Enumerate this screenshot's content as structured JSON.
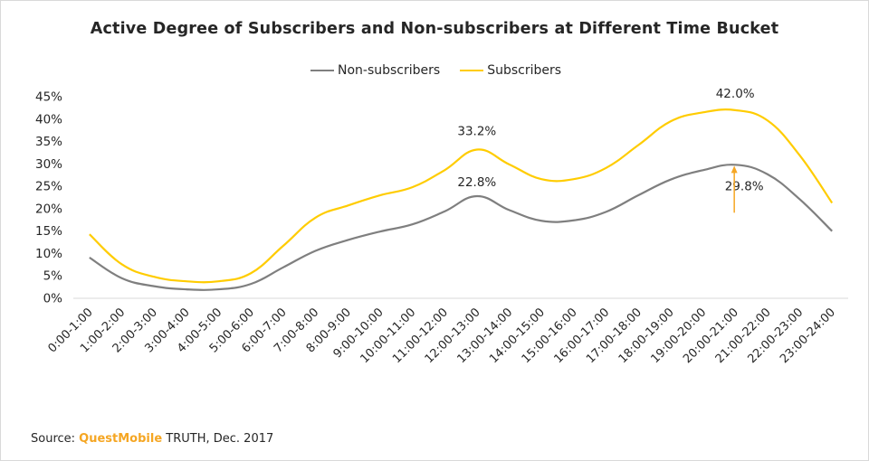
{
  "chart_data": {
    "type": "line",
    "title": "Active Degree of Subscribers and Non-subscribers at Different Time Bucket",
    "xlabel": "",
    "ylabel": "",
    "ylim": [
      0,
      45
    ],
    "yticks": [
      "0%",
      "5%",
      "10%",
      "15%",
      "20%",
      "25%",
      "30%",
      "35%",
      "40%",
      "45%"
    ],
    "ytick_values": [
      0,
      5,
      10,
      15,
      20,
      25,
      30,
      35,
      40,
      45
    ],
    "grid": false,
    "legend_position": "top-center",
    "categories": [
      "0:00-1:00",
      "1:00-2:00",
      "2:00-3:00",
      "3:00-4:00",
      "4:00-5:00",
      "5:00-6:00",
      "6:00-7:00",
      "7:00-8:00",
      "8:00-9:00",
      "9:00-10:00",
      "10:00-11:00",
      "11:00-12:00",
      "12:00-13:00",
      "13:00-14:00",
      "14:00-15:00",
      "15:00-16:00",
      "16:00-17:00",
      "17:00-18:00",
      "18:00-19:00",
      "19:00-20:00",
      "20:00-21:00",
      "21:00-22:00",
      "22:00-23:00",
      "23:00-24:00"
    ],
    "series": [
      {
        "name": "Non-subscribers",
        "color": "#7f7f7f",
        "values": [
          9.1,
          4.5,
          2.7,
          2.0,
          2.0,
          3.2,
          6.9,
          10.6,
          13.0,
          14.9,
          16.5,
          19.4,
          22.8,
          19.7,
          17.3,
          17.4,
          19.3,
          23.0,
          26.5,
          28.6,
          29.8,
          27.7,
          22.1,
          15.0
        ]
      },
      {
        "name": "Subscribers",
        "color": "#ffcc00",
        "values": [
          14.3,
          7.6,
          4.8,
          3.8,
          3.8,
          5.6,
          11.7,
          18.0,
          20.7,
          23.0,
          24.8,
          28.6,
          33.2,
          29.9,
          26.6,
          26.6,
          29.1,
          34.2,
          39.5,
          41.5,
          42.0,
          39.7,
          31.9,
          21.3
        ]
      }
    ],
    "annotations": [
      {
        "text": "33.2%",
        "category": "12:00-13:00",
        "value": 33.2
      },
      {
        "text": "22.8%",
        "category": "12:00-13:00",
        "value": 22.8
      },
      {
        "text": "42.0%",
        "category": "20:00-21:00",
        "value": 42.0
      },
      {
        "text": "29.8%",
        "category": "20:00-21:00",
        "value": 29.8
      }
    ],
    "arrow_color": "#f5a623"
  },
  "source": {
    "prefix": "Source: ",
    "brand": "QuestMobile",
    "suffix": " TRUTH, Dec. 2017"
  }
}
